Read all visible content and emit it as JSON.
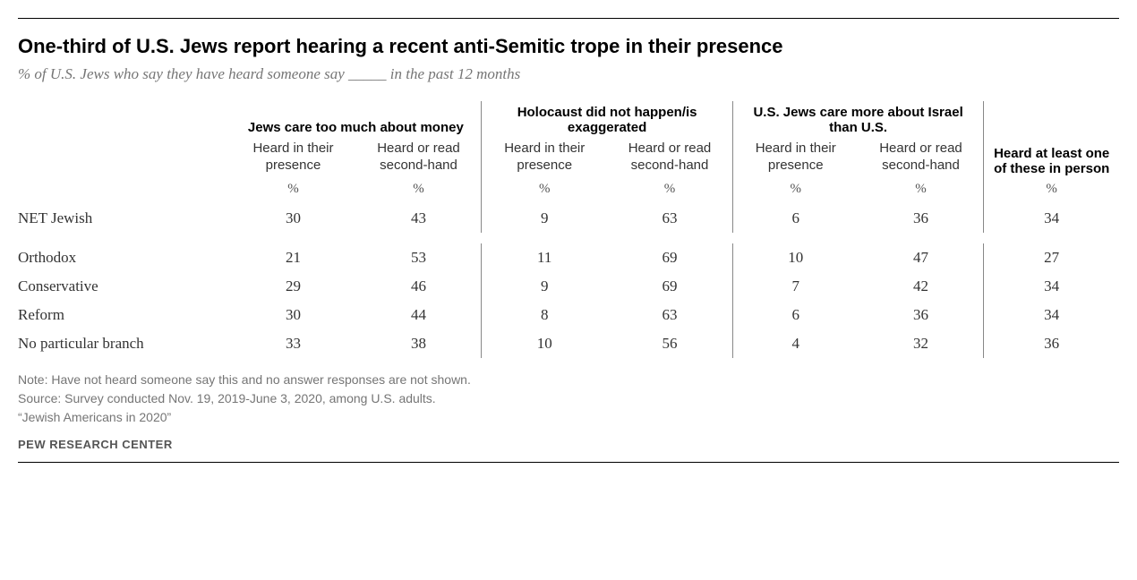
{
  "title": "One-third of U.S. Jews report hearing a recent anti-Semitic trope in their presence",
  "subtitle": "% of U.S. Jews who say they have heard someone say _____ in the past 12 months",
  "groups": [
    {
      "label": "Jews care too much about money",
      "sub1": "Heard in their presence",
      "sub2": "Heard or read second-hand"
    },
    {
      "label": "Holocaust did not happen/is exaggerated",
      "sub1": "Heard in their presence",
      "sub2": "Heard or read second-hand"
    },
    {
      "label": "U.S. Jews care more about Israel than U.S.",
      "sub1": "Heard in their presence",
      "sub2": "Heard or read second-hand"
    }
  ],
  "last_col": "Heard at least one of these in person",
  "pct": "%",
  "rows": [
    {
      "label": "NET Jewish",
      "v": [
        "30",
        "43",
        "9",
        "63",
        "6",
        "36",
        "34"
      ]
    },
    {
      "label": "Orthodox",
      "v": [
        "21",
        "53",
        "11",
        "69",
        "10",
        "47",
        "27"
      ]
    },
    {
      "label": "Conservative",
      "v": [
        "29",
        "46",
        "9",
        "69",
        "7",
        "42",
        "34"
      ]
    },
    {
      "label": "Reform",
      "v": [
        "30",
        "44",
        "8",
        "63",
        "6",
        "36",
        "34"
      ]
    },
    {
      "label": "No particular branch",
      "v": [
        "33",
        "38",
        "10",
        "56",
        "4",
        "32",
        "36"
      ]
    }
  ],
  "note1": "Note: Have not heard someone say this and no answer responses are not shown.",
  "note2": "Source: Survey conducted Nov. 19, 2019-June 3, 2020, among U.S. adults.",
  "note3": "“Jewish Americans in 2020”",
  "source_label": "PEW RESEARCH CENTER",
  "colors": {
    "text": "#333333",
    "muted": "#757575",
    "border": "#000000",
    "sep": "#888888",
    "background": "#ffffff"
  },
  "typography": {
    "title_fontsize": 22,
    "subtitle_fontsize": 17,
    "header_fontsize": 15,
    "data_fontsize": 17,
    "notes_fontsize": 14
  },
  "type": "table"
}
